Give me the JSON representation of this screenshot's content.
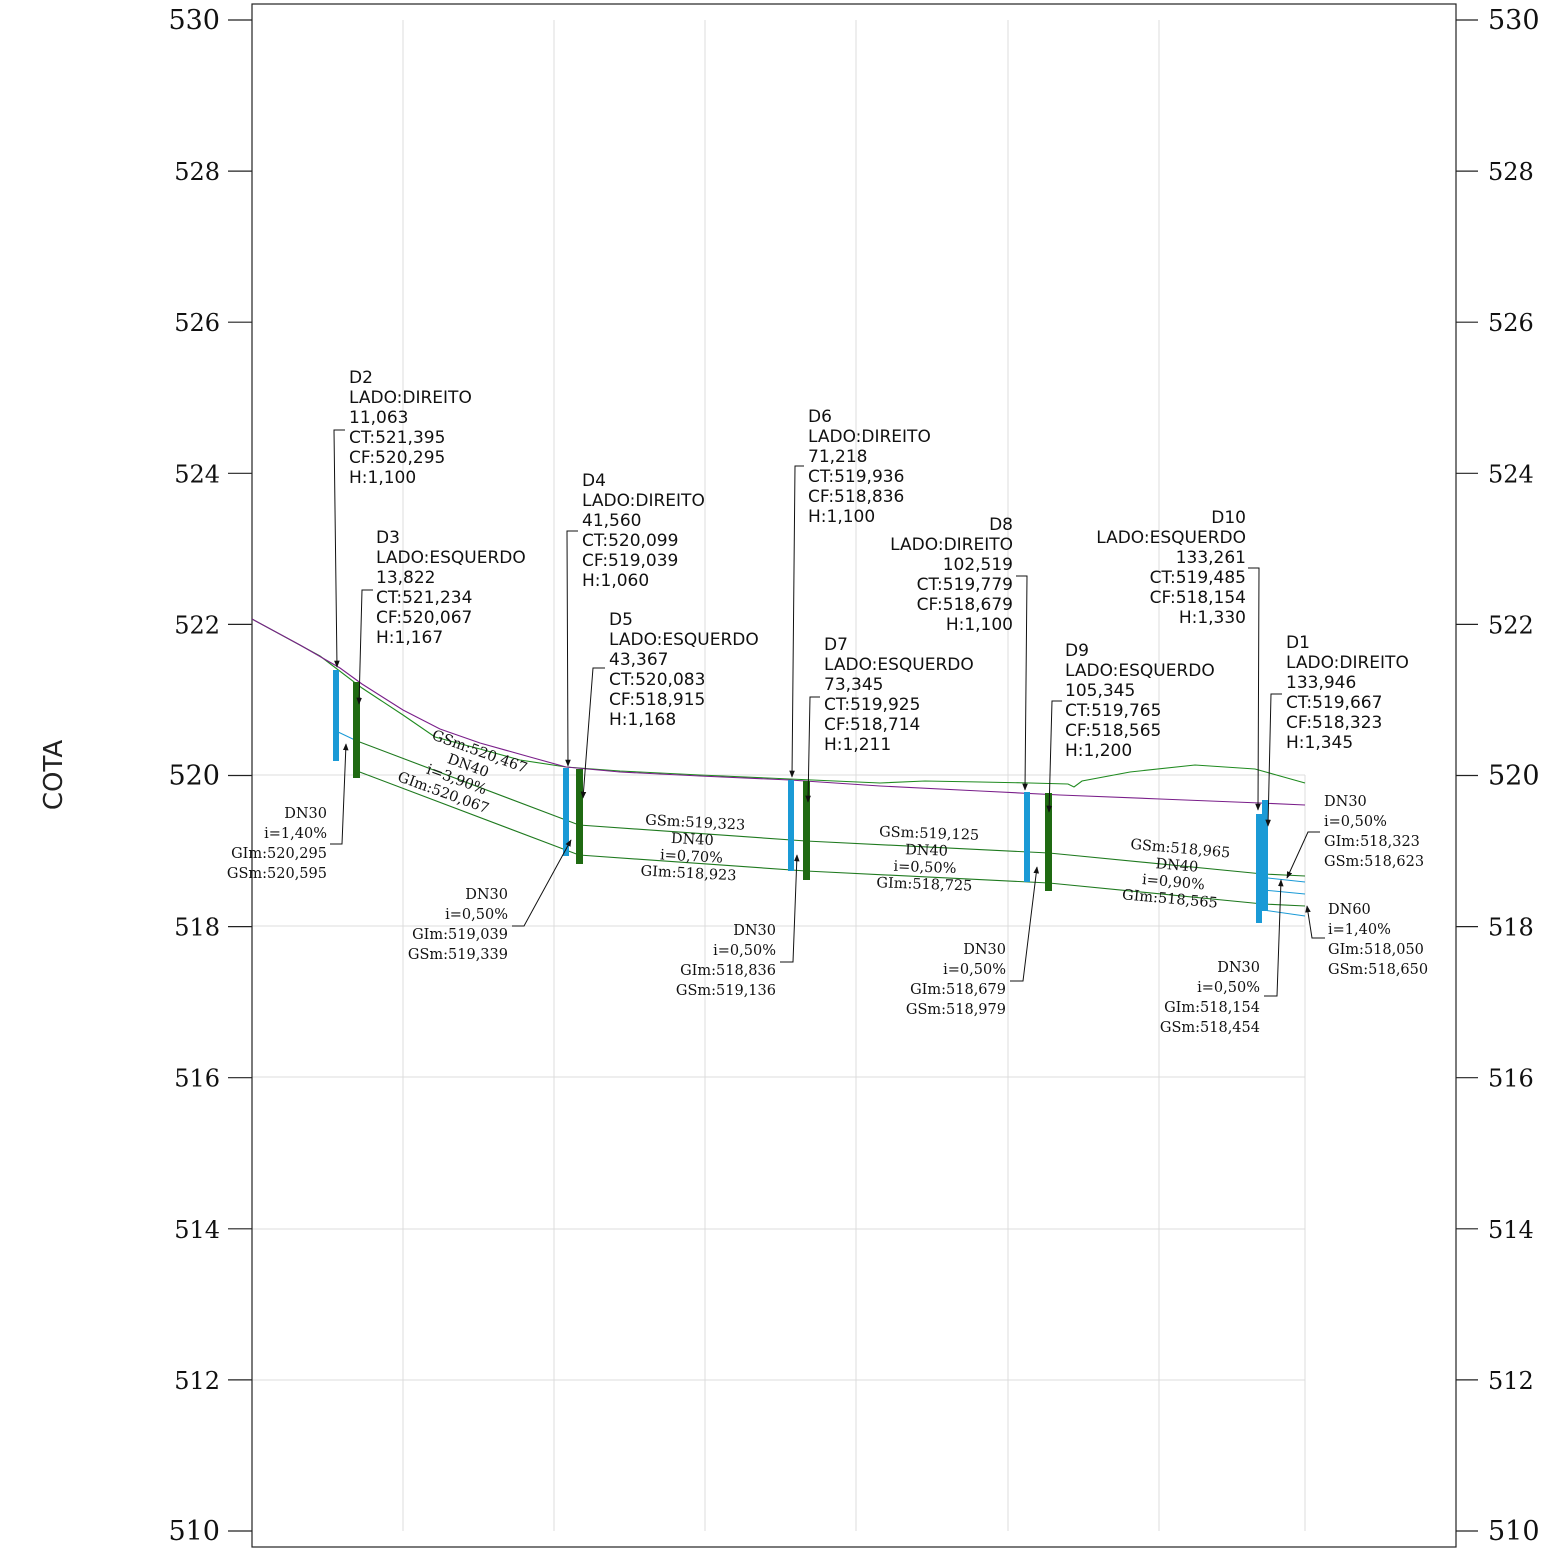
{
  "axis": {
    "title": "COTA",
    "y_ticks": [
      530,
      528,
      526,
      524,
      522,
      520,
      518,
      516,
      514,
      512,
      510
    ],
    "big_ticks": [
      530,
      520,
      510
    ]
  },
  "colors": {
    "terrain": "#1f8a1f",
    "reference_line": "#7a1f8a",
    "pipe_line": "#1f7a1f",
    "blue_structure": "#1a9ad6",
    "green_structure": "#1f6a12",
    "grid": "#dcdcdc",
    "frame": "#222222"
  },
  "structures": [
    {
      "id": "D2",
      "lines": [
        "D2",
        "LADO:DIREITO",
        "11,063",
        "CT:521,395",
        "CF:520,295",
        "H:1,100"
      ]
    },
    {
      "id": "D3",
      "lines": [
        "D3",
        "LADO:ESQUERDO",
        "13,822",
        "CT:521,234",
        "CF:520,067",
        "H:1,167"
      ]
    },
    {
      "id": "D4",
      "lines": [
        "D4",
        "LADO:DIREITO",
        "41,560",
        "CT:520,099",
        "CF:519,039",
        "H:1,060"
      ]
    },
    {
      "id": "D5",
      "lines": [
        "D5",
        "LADO:ESQUERDO",
        "43,367",
        "CT:520,083",
        "CF:518,915",
        "H:1,168"
      ]
    },
    {
      "id": "D6",
      "lines": [
        "D6",
        "LADO:DIREITO",
        "71,218",
        "CT:519,936",
        "CF:518,836",
        "H:1,100"
      ]
    },
    {
      "id": "D7",
      "lines": [
        "D7",
        "LADO:ESQUERDO",
        "73,345",
        "CT:519,925",
        "CF:518,714",
        "H:1,211"
      ]
    },
    {
      "id": "D8",
      "lines": [
        "D8",
        "LADO:DIREITO",
        "102,519",
        "CT:519,779",
        "CF:518,679",
        "H:1,100"
      ]
    },
    {
      "id": "D9",
      "lines": [
        "D9",
        "LADO:ESQUERDO",
        "105,345",
        "CT:519,765",
        "CF:518,565",
        "H:1,200"
      ]
    },
    {
      "id": "D10",
      "lines": [
        "D10",
        "LADO:ESQUERDO",
        "133,261",
        "CT:519,485",
        "CF:518,154",
        "H:1,330"
      ]
    },
    {
      "id": "D1",
      "lines": [
        "D1",
        "LADO:DIREITO",
        "133,946",
        "CT:519,667",
        "CF:518,323",
        "H:1,345"
      ]
    }
  ],
  "pipe_labels": [
    {
      "id": "p-d2",
      "lines": [
        "DN30",
        "i=1,40%",
        "GIm:520,295",
        "GSm:520,595"
      ]
    },
    {
      "id": "p-d4",
      "lines": [
        "DN30",
        "i=0,50%",
        "GIm:519,039",
        "GSm:519,339"
      ]
    },
    {
      "id": "p-d6",
      "lines": [
        "DN30",
        "i=0,50%",
        "GIm:518,836",
        "GSm:519,136"
      ]
    },
    {
      "id": "p-d8",
      "lines": [
        "DN30",
        "i=0,50%",
        "GIm:518,679",
        "GSm:518,979"
      ]
    },
    {
      "id": "p-d10",
      "lines": [
        "DN30",
        "i=0,50%",
        "GIm:518,154",
        "GSm:518,454"
      ]
    },
    {
      "id": "p-d1",
      "lines": [
        "DN30",
        "i=0,50%",
        "GIm:518,323",
        "GSm:518,623"
      ]
    },
    {
      "id": "p-out",
      "lines": [
        "DN60",
        "i=1,40%",
        "GIm:518,050",
        "GSm:518,650"
      ]
    }
  ],
  "main_pipe_labels": [
    {
      "id": "m1",
      "lines": [
        "GSm:520,467",
        "DN40",
        "i=3,90%",
        "GIm:520,067"
      ]
    },
    {
      "id": "m2",
      "lines": [
        "GSm:519,323",
        "DN40",
        "i=0,70%",
        "GIm:518,923"
      ]
    },
    {
      "id": "m3",
      "lines": [
        "GSm:519,125",
        "DN40",
        "i=0,50%",
        "GIm:518,725"
      ]
    },
    {
      "id": "m4",
      "lines": [
        "GSm:518,965",
        "DN40",
        "i=0,90%",
        "GIm:518,565"
      ]
    }
  ]
}
